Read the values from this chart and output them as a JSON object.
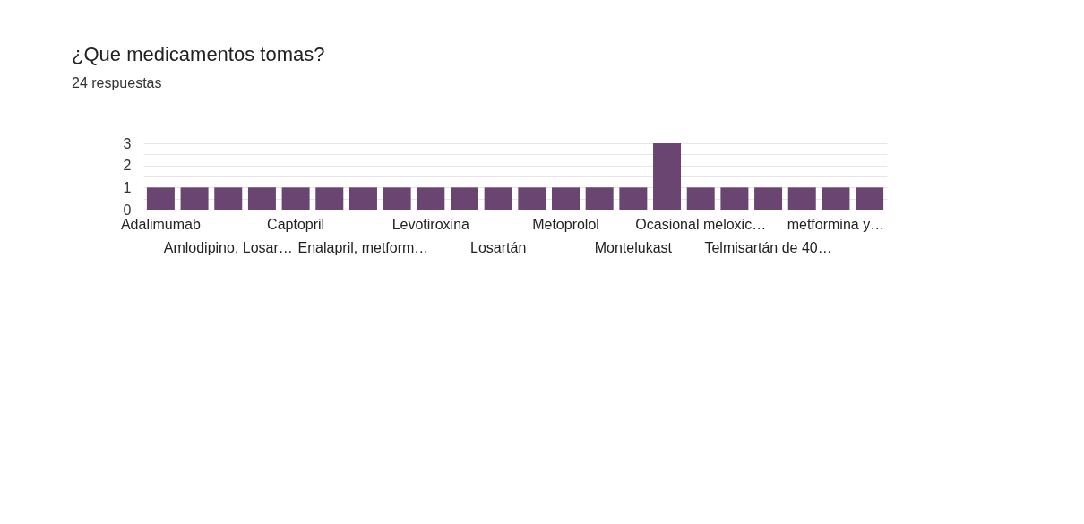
{
  "chart_data": {
    "type": "bar",
    "title": "¿Que medicamentos tomas?",
    "subtitle": "24 respuestas",
    "categories": [
      "Adalimumab",
      null,
      "Amlodipino, Losar…",
      null,
      "Captopril",
      null,
      "Enalapril, metform…",
      null,
      "Levotiroxina",
      null,
      "Losartán",
      null,
      "Metoprolol",
      null,
      "Montelukast",
      null,
      "Ocasional meloxic…",
      null,
      "Telmisartán de 40…",
      null,
      "metformina y…",
      null
    ],
    "values": [
      1,
      1,
      1,
      1,
      1,
      1,
      1,
      1,
      1,
      1,
      1,
      1,
      1,
      1,
      1,
      3,
      1,
      1,
      1,
      1,
      1,
      1
    ],
    "color": "#6a4571",
    "ylim": [
      0,
      3
    ],
    "yticks": [
      0,
      {
        "value": 0.5,
        "label": null
      },
      1,
      {
        "value": 1.5,
        "label": null
      },
      2,
      {
        "value": 2.5,
        "label": null
      },
      3
    ],
    "grid": "y"
  }
}
